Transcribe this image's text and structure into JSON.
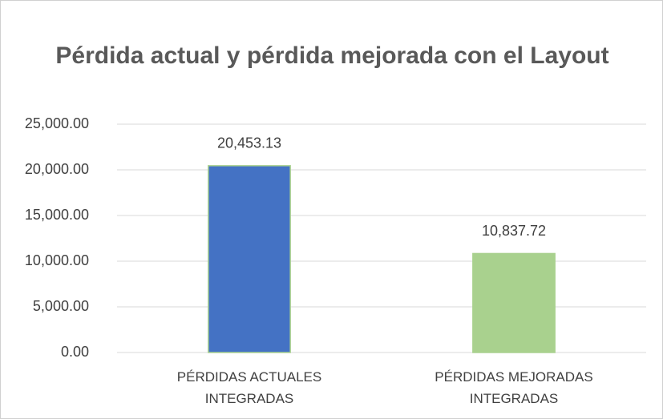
{
  "chart_data": {
    "type": "bar",
    "title": "Pérdida actual y pérdida mejorada con el Layout",
    "categories": [
      "PÉRDIDAS ACTUALES INTEGRADAS",
      "PÉRDIDAS MEJORADAS INTEGRADAS"
    ],
    "values": [
      20453.13,
      10837.72
    ],
    "value_labels": [
      "20,453.13",
      "10,837.72"
    ],
    "colors": [
      "#4472c4",
      "#a9d18e"
    ],
    "ylim": [
      0,
      25000
    ],
    "yticks": [
      {
        "value": 0,
        "label": "0.00"
      },
      {
        "value": 5000,
        "label": "5,000.00"
      },
      {
        "value": 10000,
        "label": "10,000.00"
      },
      {
        "value": 15000,
        "label": "15,000.00"
      },
      {
        "value": 20000,
        "label": "20,000.00"
      },
      {
        "value": 25000,
        "label": "25,000.00"
      }
    ],
    "grid": true
  }
}
